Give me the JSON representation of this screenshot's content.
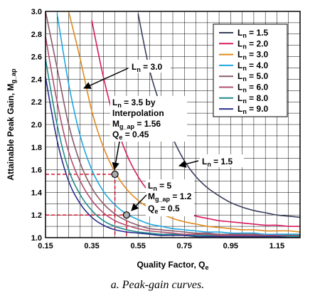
{
  "chart_data": {
    "type": "line",
    "caption": "a. Peak-gain curves.",
    "xlabel_main": "Quality Factor, Q",
    "xlabel_sub": "e",
    "ylabel_main": "Attainable Peak Gain, M",
    "ylabel_sub": "g_ap",
    "xlim": [
      0.15,
      1.25
    ],
    "ylim": [
      1.0,
      3.0
    ],
    "x_ticks": [
      "0.15",
      "0.35",
      "0.55",
      "0.75",
      "0.95",
      "1.15"
    ],
    "y_ticks": [
      "1.0",
      "1.2",
      "1.4",
      "1.6",
      "1.8",
      "2.0",
      "2.2",
      "2.4",
      "2.6",
      "2.8",
      "3.0"
    ],
    "grid": true,
    "legend_position": "top-right",
    "x": [
      0.15,
      0.2,
      0.25,
      0.3,
      0.35,
      0.4,
      0.45,
      0.5,
      0.55,
      0.6,
      0.65,
      0.7,
      0.75,
      0.8,
      0.85,
      0.9,
      0.95,
      1.0,
      1.05,
      1.1,
      1.15,
      1.2,
      1.25
    ],
    "series": [
      {
        "name": "1.5",
        "color": "#3a3f5c",
        "values": [
          null,
          null,
          null,
          null,
          null,
          null,
          null,
          null,
          2.98,
          2.48,
          2.15,
          1.88,
          1.68,
          1.54,
          1.44,
          1.37,
          1.31,
          1.27,
          1.24,
          1.22,
          1.2,
          1.19,
          1.18
        ]
      },
      {
        "name": "2.0",
        "color": "#d81b60",
        "values": [
          null,
          null,
          null,
          null,
          2.92,
          2.42,
          2.03,
          1.74,
          1.54,
          1.4,
          1.32,
          1.26,
          1.22,
          1.19,
          1.17,
          1.15,
          1.14,
          1.13,
          1.12,
          1.11,
          1.11,
          1.1,
          1.1
        ]
      },
      {
        "name": "3.0",
        "color": "#e08a1e",
        "values": [
          null,
          null,
          3.0,
          2.58,
          2.12,
          1.8,
          1.58,
          1.43,
          1.33,
          1.26,
          1.21,
          1.17,
          1.14,
          1.12,
          1.1,
          1.09,
          1.08,
          1.07,
          1.07,
          1.06,
          1.06,
          1.06,
          1.05
        ]
      },
      {
        "name": "4.0",
        "color": "#1ea7e0",
        "values": [
          null,
          2.98,
          2.36,
          1.9,
          1.6,
          1.41,
          1.29,
          1.21,
          1.16,
          1.12,
          1.1,
          1.08,
          1.07,
          1.06,
          1.05,
          1.05,
          1.04,
          1.04,
          1.04,
          1.03,
          1.03,
          1.03,
          1.03
        ]
      },
      {
        "name": "5.0",
        "color": "#8b5a6b",
        "values": [
          3.0,
          2.5,
          2.0,
          1.66,
          1.44,
          1.3,
          1.21,
          1.15,
          1.11,
          1.08,
          1.07,
          1.06,
          1.05,
          1.04,
          1.04,
          1.03,
          1.03,
          1.03,
          1.03,
          1.02,
          1.02,
          1.02,
          1.02
        ]
      },
      {
        "name": "6.0",
        "color": "#b04f70",
        "values": [
          2.78,
          2.2,
          1.76,
          1.5,
          1.33,
          1.22,
          1.15,
          1.11,
          1.08,
          1.06,
          1.05,
          1.04,
          1.03,
          1.03,
          1.03,
          1.02,
          1.02,
          1.02,
          1.02,
          1.02,
          1.02,
          1.01,
          1.01
        ]
      },
      {
        "name": "8.0",
        "color": "#1f8a8a",
        "values": [
          2.58,
          2.0,
          1.6,
          1.38,
          1.24,
          1.15,
          1.1,
          1.07,
          1.05,
          1.04,
          1.03,
          1.03,
          1.02,
          1.02,
          1.02,
          1.01,
          1.01,
          1.01,
          1.01,
          1.01,
          1.01,
          1.01,
          1.01
        ]
      },
      {
        "name": "9.0",
        "color": "#2b2f8a",
        "values": [
          2.42,
          1.86,
          1.5,
          1.3,
          1.18,
          1.11,
          1.07,
          1.05,
          1.04,
          1.03,
          1.02,
          1.02,
          1.02,
          1.01,
          1.01,
          1.01,
          1.01,
          1.01,
          1.01,
          1.01,
          1.01,
          1.0,
          1.0
        ]
      }
    ],
    "legend_prefix": "L",
    "legend_prefix_sub": "n",
    "legend_sep": " = ",
    "annotations": {
      "ln30": {
        "main": "L",
        "sub": "n",
        "rest": " = 3.0"
      },
      "ln15": {
        "main": "L",
        "sub": "n",
        "rest": " = 1.5"
      },
      "interp": {
        "l1_main": "L",
        "l1_sub": "n",
        "l1_rest": " = 3.5 by",
        "l2": "Interpolation",
        "l3_main": "M",
        "l3_sub": "g_ap",
        "l3_rest": " = 1.56",
        "l4_main": "Q",
        "l4_sub": "e",
        "l4_rest": " = 0.45"
      },
      "ln5": {
        "l1_main": "L",
        "l1_sub": "n",
        "l1_rest": " = 5",
        "l2_main": "M",
        "l2_sub": "g_ap",
        "l2_rest": " = 1.2",
        "l3_main": "Q",
        "l3_sub": "e",
        "l3_rest": " = 0.5"
      }
    },
    "points": [
      {
        "x": 0.45,
        "y": 1.56
      },
      {
        "x": 0.5,
        "y": 1.2
      }
    ],
    "marker_color": "#aaaaaa",
    "guide_color": "#d0021b"
  }
}
